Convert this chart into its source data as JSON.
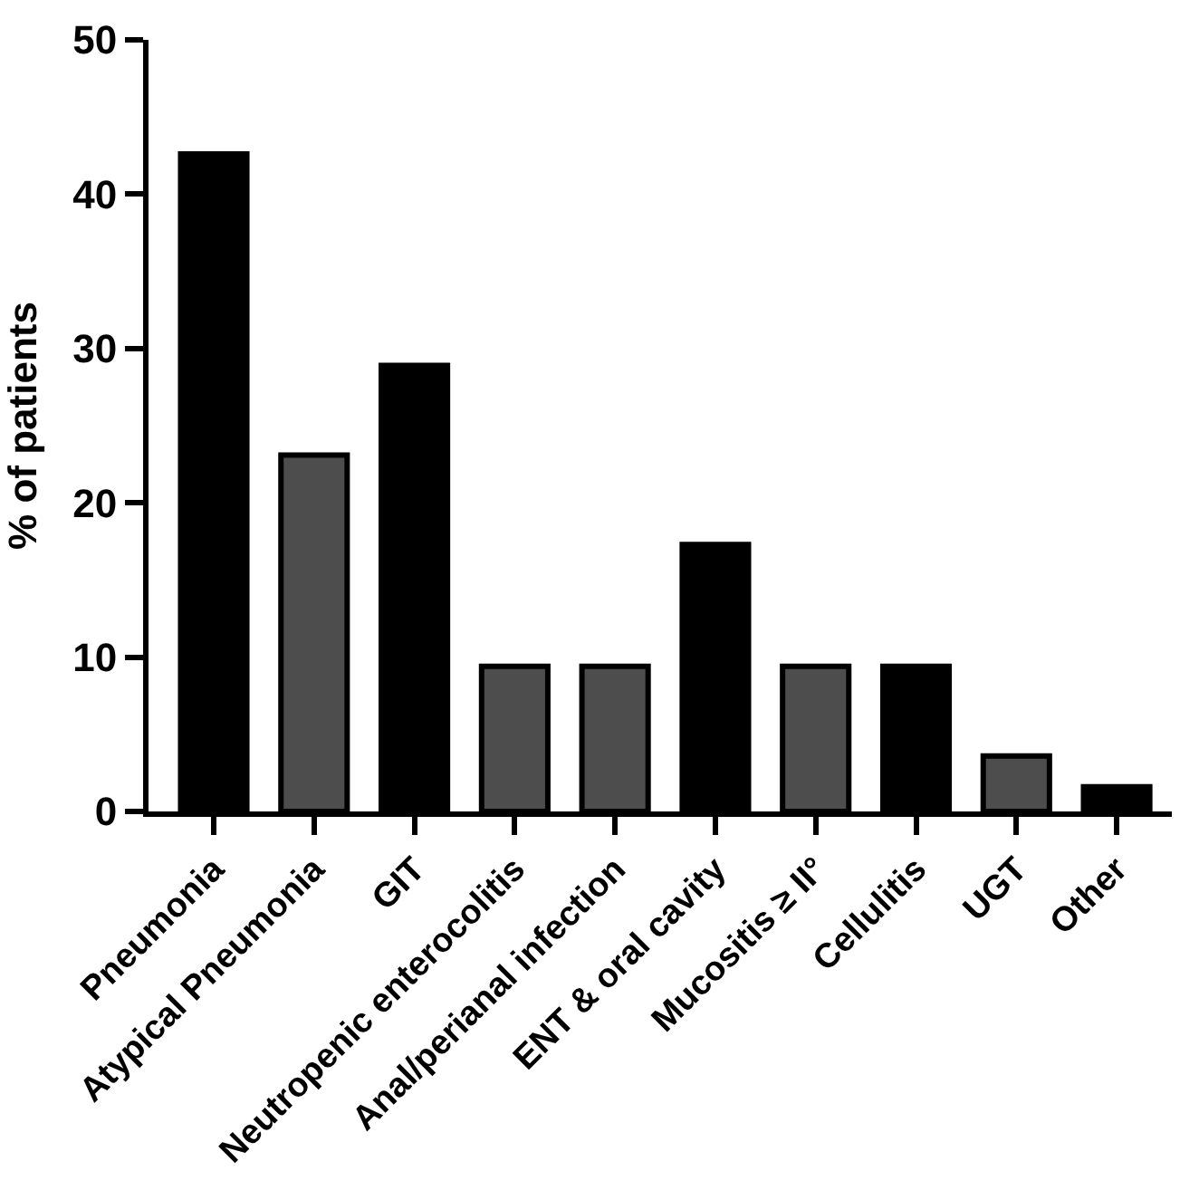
{
  "chart_data": {
    "type": "bar",
    "ylabel": "% of patients",
    "categories": [
      "Pneumonia",
      "Atypical Pneumonia",
      "GIT",
      "Neutropenic enterocolitis",
      "Anal/perianal infection",
      "ENT & oral cavity",
      "Mucositis ≥ II°",
      "Cellulitis",
      "UGT",
      "Other"
    ],
    "values": [
      42.6,
      23.1,
      28.9,
      9.4,
      9.4,
      17.3,
      9.4,
      9.4,
      3.6,
      1.6
    ],
    "colors": [
      "#000000",
      "#4d4d4d",
      "#000000",
      "#4d4d4d",
      "#4d4d4d",
      "#000000",
      "#4d4d4d",
      "#000000",
      "#4d4d4d",
      "#000000"
    ],
    "ylim": [
      0,
      50
    ],
    "yticks": [
      0,
      10,
      20,
      30,
      40,
      50
    ]
  }
}
